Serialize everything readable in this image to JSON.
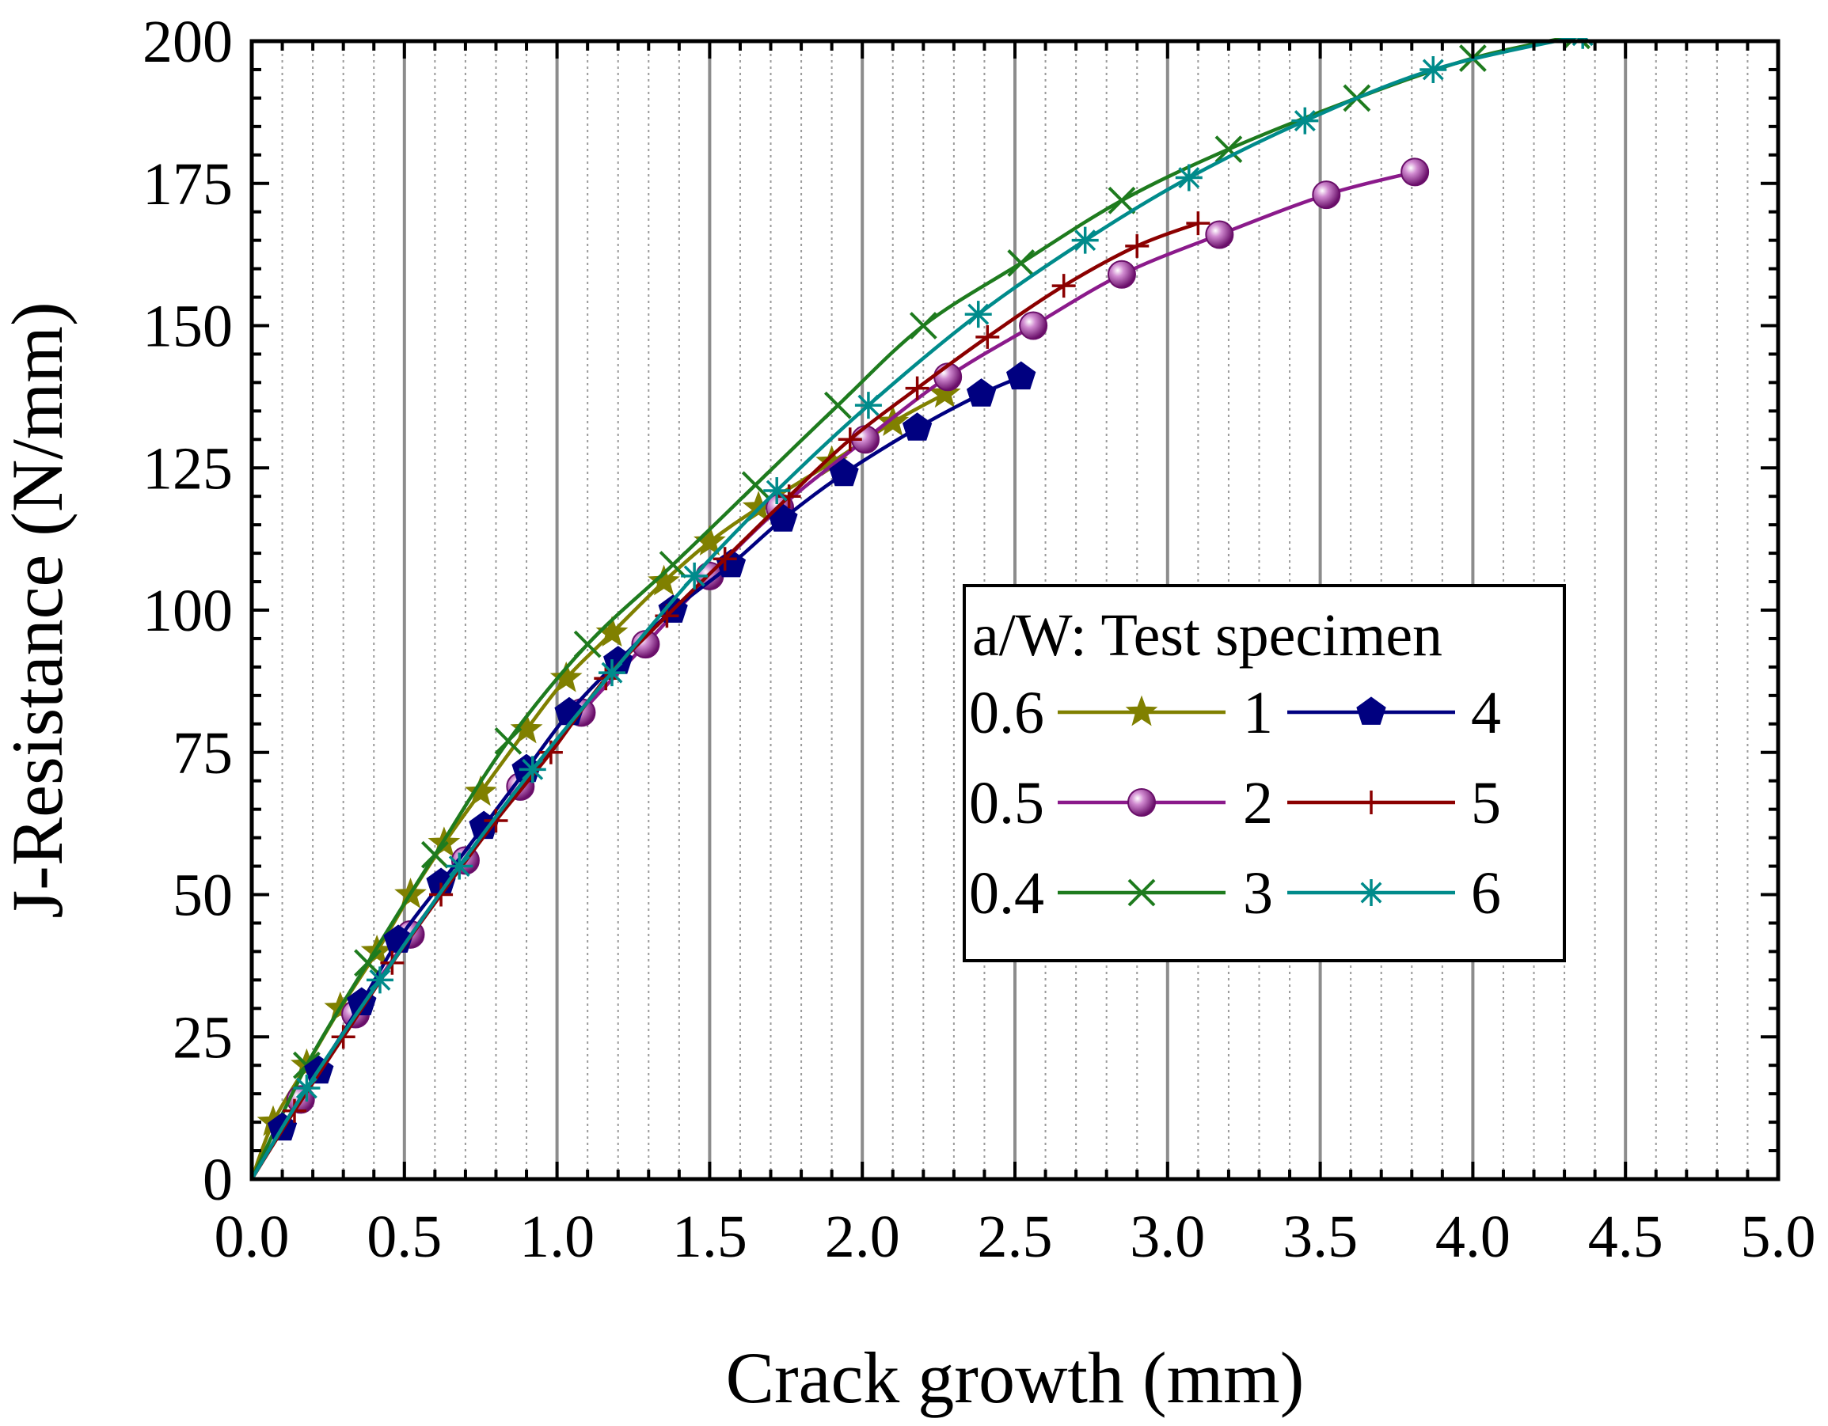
{
  "chart_data": {
    "type": "line",
    "xlabel": "Crack growth (mm)",
    "ylabel": "J-Resistance (N/mm)",
    "xlim": [
      0,
      5
    ],
    "ylim": [
      0,
      200
    ],
    "xticks": [
      "0.0",
      "0.5",
      "1.0",
      "1.5",
      "2.0",
      "2.5",
      "3.0",
      "3.5",
      "4.0",
      "4.5",
      "5.0"
    ],
    "yticks": [
      "0",
      "25",
      "50",
      "75",
      "100",
      "125",
      "150",
      "175",
      "200"
    ],
    "grid": "vertical major gridlines solid gray, vertical minor gridlines dotted",
    "legend": {
      "title": "a/W: Test specimen",
      "placement": "center-right",
      "rows": [
        {
          "aw": "0.6",
          "left": "1",
          "right": "4"
        },
        {
          "aw": "0.5",
          "left": "2",
          "right": "5"
        },
        {
          "aw": "0.4",
          "left": "3",
          "right": "6"
        }
      ]
    },
    "series": [
      {
        "name": "1",
        "color": "#808000",
        "marker": "star",
        "x": [
          0,
          0.07,
          0.18,
          0.29,
          0.41,
          0.52,
          0.63,
          0.75,
          0.9,
          1.03,
          1.18,
          1.35,
          1.5,
          1.66,
          1.9,
          2.1,
          2.27
        ],
        "y": [
          0,
          10,
          20,
          30,
          40,
          50,
          59,
          68,
          79,
          88,
          96,
          105,
          112,
          118,
          126,
          133,
          138
        ]
      },
      {
        "name": "2",
        "color": "#8B1A8B",
        "marker": "sphere",
        "x": [
          0,
          0.16,
          0.34,
          0.52,
          0.7,
          0.88,
          1.08,
          1.29,
          1.5,
          1.73,
          2.01,
          2.28,
          2.56,
          2.85,
          3.17,
          3.52,
          3.81
        ],
        "y": [
          0,
          14,
          29,
          43,
          56,
          69,
          82,
          94,
          106,
          118,
          130,
          141,
          150,
          159,
          166,
          173,
          177
        ]
      },
      {
        "name": "3",
        "color": "#1E7B1E",
        "marker": "x",
        "x": [
          0,
          0.18,
          0.38,
          0.6,
          0.84,
          1.1,
          1.38,
          1.65,
          1.92,
          2.2,
          2.52,
          2.85,
          3.2,
          3.62,
          4.0,
          4.34
        ],
        "y": [
          0,
          20,
          38,
          57,
          77,
          94,
          108,
          122,
          136,
          150,
          161,
          172,
          181,
          190,
          197,
          201
        ]
      },
      {
        "name": "4",
        "color": "#000080",
        "marker": "pentagon",
        "x": [
          0,
          0.1,
          0.22,
          0.36,
          0.48,
          0.62,
          0.76,
          0.9,
          1.04,
          1.2,
          1.38,
          1.57,
          1.74,
          1.94,
          2.18,
          2.39,
          2.52
        ],
        "y": [
          0,
          9,
          19,
          31,
          42,
          52,
          62,
          72,
          82,
          91,
          100,
          108,
          116,
          124,
          132,
          138,
          141
        ]
      },
      {
        "name": "5",
        "color": "#8B0000",
        "marker": "plus",
        "x": [
          0,
          0.14,
          0.3,
          0.46,
          0.62,
          0.8,
          0.98,
          1.16,
          1.36,
          1.55,
          1.76,
          1.96,
          2.18,
          2.41,
          2.66,
          2.9,
          3.1
        ],
        "y": [
          0,
          12,
          25,
          38,
          50,
          63,
          75,
          88,
          99,
          109,
          120,
          130,
          139,
          148,
          157,
          164,
          168
        ]
      },
      {
        "name": "6",
        "color": "#008B8B",
        "marker": "asterisk",
        "x": [
          0,
          0.18,
          0.42,
          0.68,
          0.92,
          1.18,
          1.45,
          1.72,
          2.02,
          2.38,
          2.73,
          3.07,
          3.45,
          3.87,
          4.36
        ],
        "y": [
          0,
          16,
          35,
          55,
          72,
          89,
          106,
          121,
          136,
          152,
          165,
          176,
          186,
          195,
          201
        ]
      }
    ]
  }
}
